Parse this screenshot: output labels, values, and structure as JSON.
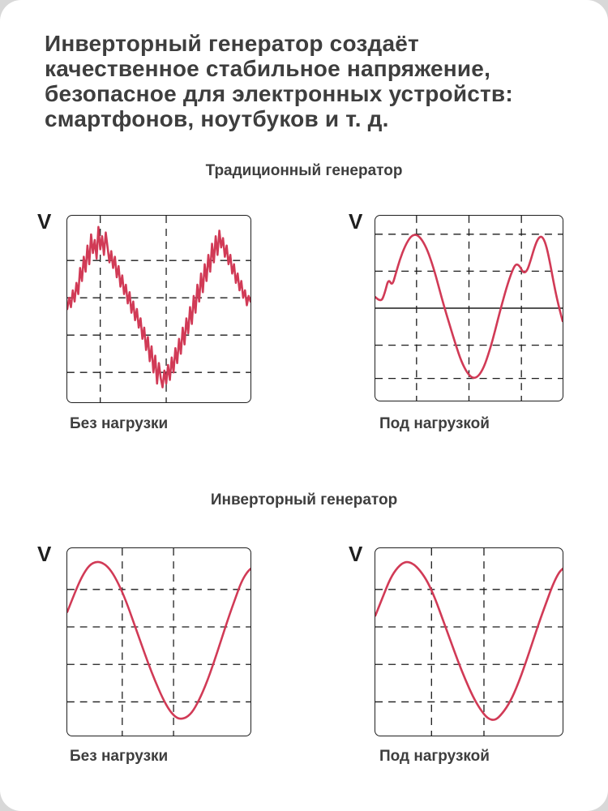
{
  "page": {
    "title_lines": [
      "Инверторный генератор создаёт",
      "качественное стабильное напряжение,",
      "безопасное для электронных устройств:",
      "смартфонов, ноутбуков и т. д."
    ]
  },
  "sections": [
    {
      "heading": "Традиционный генератор"
    },
    {
      "heading": "Инверторный генератор"
    }
  ],
  "colors": {
    "waveform": "#d13a56",
    "grid": "#1c1c1c",
    "text": "#3e3e3e",
    "background": "#ffffff"
  },
  "panels": [
    {
      "axis_label": "V",
      "caption": "Без нагрузки",
      "type": "noisy-distorted-sine",
      "smooth": false,
      "grid": {
        "h_lines": [
          24,
          44,
          64,
          84
        ],
        "v_lines": [
          18,
          54
        ]
      },
      "points": [
        [
          0,
          50
        ],
        [
          1,
          44
        ],
        [
          2,
          49
        ],
        [
          3,
          40
        ],
        [
          4,
          46
        ],
        [
          5,
          36
        ],
        [
          6,
          42
        ],
        [
          7,
          28
        ],
        [
          8,
          35
        ],
        [
          9,
          22
        ],
        [
          10,
          30
        ],
        [
          11,
          16
        ],
        [
          12,
          26
        ],
        [
          13,
          10
        ],
        [
          14,
          20
        ],
        [
          15,
          13
        ],
        [
          16,
          23
        ],
        [
          17,
          6
        ],
        [
          18,
          18
        ],
        [
          19,
          11
        ],
        [
          20,
          21
        ],
        [
          21,
          9
        ],
        [
          22,
          17
        ],
        [
          23,
          25
        ],
        [
          24,
          19
        ],
        [
          25,
          28
        ],
        [
          26,
          22
        ],
        [
          27,
          33
        ],
        [
          28,
          27
        ],
        [
          29,
          38
        ],
        [
          30,
          32
        ],
        [
          31,
          42
        ],
        [
          32,
          37
        ],
        [
          33,
          47
        ],
        [
          34,
          41
        ],
        [
          35,
          52
        ],
        [
          36,
          46
        ],
        [
          37,
          56
        ],
        [
          38,
          50
        ],
        [
          39,
          60
        ],
        [
          40,
          55
        ],
        [
          41,
          66
        ],
        [
          42,
          60
        ],
        [
          43,
          72
        ],
        [
          44,
          65
        ],
        [
          45,
          78
        ],
        [
          46,
          70
        ],
        [
          47,
          84
        ],
        [
          48,
          75
        ],
        [
          49,
          90
        ],
        [
          50,
          79
        ],
        [
          51,
          87
        ],
        [
          52,
          92
        ],
        [
          53,
          83
        ],
        [
          54,
          90
        ],
        [
          55,
          80
        ],
        [
          56,
          88
        ],
        [
          57,
          76
        ],
        [
          58,
          84
        ],
        [
          59,
          71
        ],
        [
          60,
          79
        ],
        [
          61,
          66
        ],
        [
          62,
          74
        ],
        [
          63,
          60
        ],
        [
          64,
          69
        ],
        [
          65,
          55
        ],
        [
          66,
          63
        ],
        [
          67,
          49
        ],
        [
          68,
          58
        ],
        [
          69,
          43
        ],
        [
          70,
          52
        ],
        [
          71,
          37
        ],
        [
          72,
          46
        ],
        [
          73,
          31
        ],
        [
          74,
          41
        ],
        [
          75,
          26
        ],
        [
          76,
          35
        ],
        [
          77,
          21
        ],
        [
          78,
          30
        ],
        [
          79,
          15
        ],
        [
          80,
          25
        ],
        [
          81,
          11
        ],
        [
          82,
          21
        ],
        [
          83,
          8
        ],
        [
          84,
          17
        ],
        [
          85,
          12
        ],
        [
          86,
          22
        ],
        [
          87,
          16
        ],
        [
          88,
          26
        ],
        [
          89,
          21
        ],
        [
          90,
          31
        ],
        [
          91,
          26
        ],
        [
          92,
          36
        ],
        [
          93,
          31
        ],
        [
          94,
          40
        ],
        [
          95,
          35
        ],
        [
          96,
          44
        ],
        [
          97,
          40
        ],
        [
          98,
          48
        ],
        [
          99,
          43
        ],
        [
          100,
          46
        ]
      ]
    },
    {
      "axis_label": "V",
      "caption": "Под нагрузкой",
      "type": "distorted-sine",
      "smooth": true,
      "grid": {
        "h_lines": [
          10,
          30,
          70,
          88
        ],
        "v_lines": [
          22,
          50,
          78
        ],
        "solid_h_line": 50
      },
      "points": [
        [
          0,
          44
        ],
        [
          3,
          47
        ],
        [
          5,
          42
        ],
        [
          7,
          34
        ],
        [
          9,
          38
        ],
        [
          11,
          31
        ],
        [
          13,
          24
        ],
        [
          16,
          16
        ],
        [
          19,
          11
        ],
        [
          22,
          10
        ],
        [
          25,
          13
        ],
        [
          28,
          19
        ],
        [
          31,
          28
        ],
        [
          34,
          39
        ],
        [
          37,
          50
        ],
        [
          40,
          60
        ],
        [
          43,
          70
        ],
        [
          46,
          79
        ],
        [
          49,
          85
        ],
        [
          52,
          88
        ],
        [
          55,
          87
        ],
        [
          58,
          82
        ],
        [
          61,
          73
        ],
        [
          64,
          62
        ],
        [
          67,
          50
        ],
        [
          70,
          39
        ],
        [
          73,
          30
        ],
        [
          75,
          26
        ],
        [
          77,
          27
        ],
        [
          79,
          31
        ],
        [
          81,
          30
        ],
        [
          83,
          24
        ],
        [
          85,
          17
        ],
        [
          87,
          12
        ],
        [
          89,
          11
        ],
        [
          91,
          15
        ],
        [
          93,
          24
        ],
        [
          95,
          35
        ],
        [
          97,
          45
        ],
        [
          100,
          57
        ]
      ]
    },
    {
      "axis_label": "V",
      "caption": "Без нагрузки",
      "type": "clean-sine",
      "smooth": true,
      "grid": {
        "h_lines": [
          22,
          42,
          62,
          82
        ],
        "v_lines": [
          30,
          58
        ]
      },
      "points": [
        [
          0,
          34
        ],
        [
          4,
          24
        ],
        [
          8,
          15
        ],
        [
          12,
          9
        ],
        [
          16,
          7
        ],
        [
          20,
          8
        ],
        [
          24,
          12
        ],
        [
          28,
          19
        ],
        [
          32,
          28
        ],
        [
          36,
          39
        ],
        [
          40,
          50
        ],
        [
          44,
          61
        ],
        [
          48,
          71
        ],
        [
          52,
          80
        ],
        [
          56,
          87
        ],
        [
          60,
          91
        ],
        [
          64,
          91
        ],
        [
          68,
          88
        ],
        [
          72,
          81
        ],
        [
          76,
          72
        ],
        [
          80,
          61
        ],
        [
          84,
          49
        ],
        [
          88,
          37
        ],
        [
          92,
          26
        ],
        [
          95,
          18
        ],
        [
          98,
          13
        ],
        [
          100,
          11
        ]
      ]
    },
    {
      "axis_label": "V",
      "caption": "Под нагрузкой",
      "type": "clean-sine",
      "smooth": true,
      "grid": {
        "h_lines": [
          22,
          42,
          62,
          82
        ],
        "v_lines": [
          30,
          58
        ]
      },
      "points": [
        [
          0,
          36
        ],
        [
          4,
          26
        ],
        [
          8,
          16
        ],
        [
          12,
          10
        ],
        [
          16,
          7
        ],
        [
          20,
          8
        ],
        [
          24,
          12
        ],
        [
          28,
          18
        ],
        [
          32,
          27
        ],
        [
          36,
          38
        ],
        [
          40,
          49
        ],
        [
          44,
          60
        ],
        [
          48,
          70
        ],
        [
          52,
          79
        ],
        [
          56,
          86
        ],
        [
          60,
          91
        ],
        [
          64,
          92
        ],
        [
          68,
          88
        ],
        [
          72,
          82
        ],
        [
          76,
          73
        ],
        [
          80,
          62
        ],
        [
          84,
          50
        ],
        [
          88,
          38
        ],
        [
          92,
          27
        ],
        [
          95,
          19
        ],
        [
          98,
          13
        ],
        [
          100,
          11
        ]
      ]
    }
  ]
}
